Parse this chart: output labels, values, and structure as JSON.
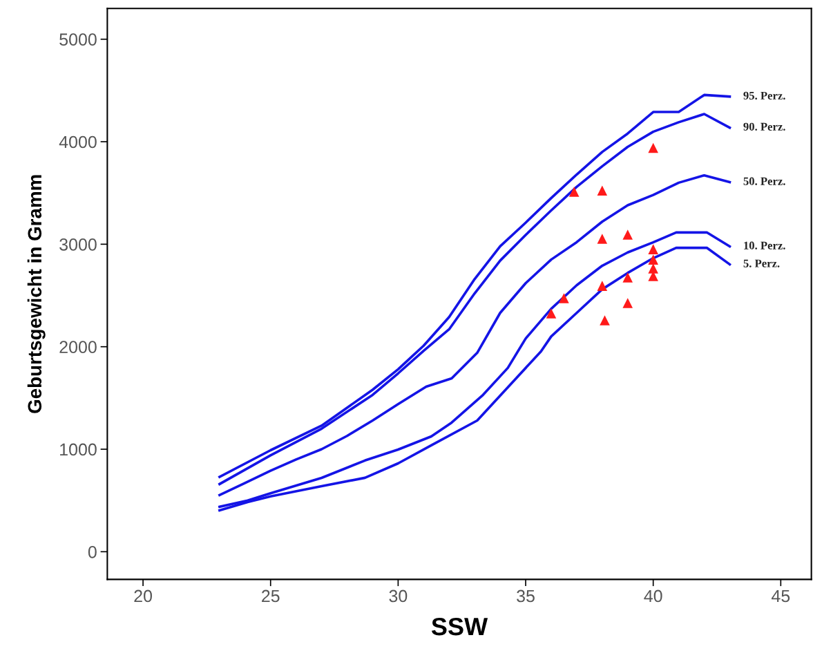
{
  "chart_data": {
    "type": "line",
    "xlabel": "SSW",
    "ylabel": "Geburtsgewicht in Gramm",
    "xlim": [
      18.6,
      46.2
    ],
    "ylim": [
      -270,
      5300
    ],
    "xticks": [
      20,
      25,
      30,
      35,
      40,
      45
    ],
    "yticks": [
      0,
      1000,
      2000,
      3000,
      4000,
      5000
    ],
    "grid": false,
    "legend": false,
    "marker": "none",
    "line_style": "solid",
    "series": [
      {
        "name": "95. Perz.",
        "color": "#1414e6",
        "x": [
          23,
          25,
          27,
          29,
          30,
          31,
          32,
          33,
          34,
          35,
          36,
          37,
          38,
          39,
          40,
          41,
          42,
          43
        ],
        "values": [
          730,
          990,
          1230,
          1580,
          1780,
          2010,
          2290,
          2660,
          2980,
          3210,
          3450,
          3680,
          3900,
          4080,
          4290,
          4290,
          4456,
          4440
        ]
      },
      {
        "name": "90. Perz.",
        "color": "#1414e6",
        "x": [
          23,
          25,
          27,
          29,
          30,
          31,
          32,
          33,
          34,
          35,
          36,
          37,
          38,
          39,
          40,
          41,
          42,
          43
        ],
        "values": [
          660,
          940,
          1200,
          1530,
          1740,
          1960,
          2170,
          2520,
          2840,
          3090,
          3330,
          3560,
          3760,
          3950,
          4097,
          4190,
          4270,
          4137
        ]
      },
      {
        "name": "50. Perz.",
        "color": "#1414e6",
        "x": [
          23,
          24,
          25,
          26,
          27,
          28,
          29,
          30,
          31.1,
          32.1,
          33.1,
          34,
          35,
          36,
          37,
          38,
          39,
          40,
          41,
          42,
          43
        ],
        "values": [
          553,
          670,
          790,
          900,
          1000,
          1130,
          1280,
          1440,
          1610,
          1691,
          1940,
          2330,
          2620,
          2850,
          3020,
          3220,
          3380,
          3480,
          3600,
          3672,
          3605
        ]
      },
      {
        "name": "10. Perz.",
        "color": "#1414e6",
        "x": [
          23,
          24.1,
          25,
          27,
          28.7,
          30,
          31.3,
          32.1,
          33.3,
          34.3,
          35,
          36,
          37,
          38,
          39,
          40,
          40.9,
          42.1,
          43
        ],
        "values": [
          438,
          499,
          570,
          720,
          890,
          997,
          1125,
          1260,
          1523,
          1793,
          2080,
          2370,
          2600,
          2790,
          2920,
          3019,
          3115,
          3115,
          2978
        ]
      },
      {
        "name": "5. Perz.",
        "color": "#1414e6",
        "x": [
          23,
          24.1,
          25,
          27,
          28.7,
          30,
          31.3,
          33.1,
          34.4,
          35.6,
          36,
          37,
          38,
          39,
          40,
          40.9,
          42.1,
          43
        ],
        "values": [
          404,
          485,
          540,
          640,
          721,
          862,
          1038,
          1280,
          1631,
          1954,
          2100,
          2330,
          2560,
          2720,
          2864,
          2965,
          2965,
          2803
        ]
      },
      {
        "type": "scatter",
        "marker": "triangle",
        "color": "#ff1a1a",
        "x": [
          40,
          36.9,
          38,
          38,
          39,
          40,
          40,
          40,
          40,
          39,
          38,
          36.5,
          36,
          39,
          38.1
        ],
        "values": [
          3940,
          3511,
          3524,
          3053,
          3093,
          2951,
          2850,
          2763,
          2689,
          2675,
          2594,
          2473,
          2325,
          2426,
          2257
        ]
      }
    ]
  }
}
